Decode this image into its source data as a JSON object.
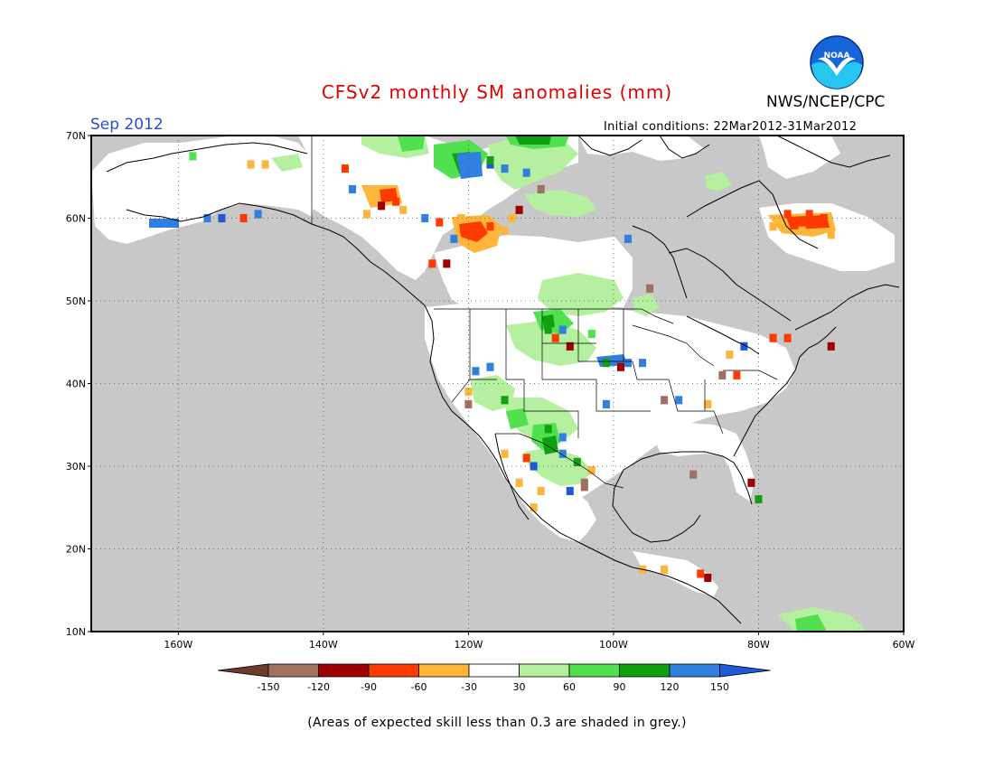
{
  "header": {
    "title": "CFSv2 monthly SM anomalies (mm)",
    "agency": "NWS/NCEP/CPC",
    "valid_month": "Sep 2012",
    "initial_conditions": "Initial conditions: 22Mar2012-31Mar2012",
    "logo_text": "NOAA"
  },
  "map": {
    "lon_range": [
      -172,
      -60
    ],
    "lat_range": [
      10,
      70
    ],
    "lat_ticks": [
      {
        "value": 70,
        "label": "70N"
      },
      {
        "value": 60,
        "label": "60N"
      },
      {
        "value": 50,
        "label": "50N"
      },
      {
        "value": 40,
        "label": "40N"
      },
      {
        "value": 30,
        "label": "30N"
      },
      {
        "value": 20,
        "label": "20N"
      },
      {
        "value": 10,
        "label": "10N"
      }
    ],
    "lon_ticks": [
      {
        "value": -160,
        "label": "160W"
      },
      {
        "value": -140,
        "label": "140W"
      },
      {
        "value": -120,
        "label": "120W"
      },
      {
        "value": -100,
        "label": "100W"
      },
      {
        "value": -80,
        "label": "80W"
      },
      {
        "value": -60,
        "label": "60W"
      }
    ],
    "background_color": "#c8c8c8",
    "gridlines": "dotted"
  },
  "legend": {
    "boundaries": [
      "-150",
      "-120",
      "-90",
      "-60",
      "-30",
      "30",
      "60",
      "90",
      "120",
      "150"
    ],
    "colors": [
      "#6e3b2a",
      "#a07060",
      "#a00000",
      "#ff3a00",
      "#ffb43a",
      "#ffffff",
      "#b4f0a0",
      "#50e050",
      "#10a010",
      "#3080e0",
      "#1e5ad6"
    ]
  },
  "footnote": "(Areas of expected skill less than 0.3 are shaded in grey.)",
  "chart_data": {
    "type": "heatmap",
    "title": "CFSv2 monthly SM anomalies (mm)",
    "units": "mm",
    "period": "Sep 2012",
    "skill_note": "Areas of expected skill less than 0.3 are shaded in grey.",
    "cells": [
      {
        "lon": -158,
        "lat": 67.5,
        "cls": 7
      },
      {
        "lon": -150,
        "lat": 66.5,
        "cls": 4
      },
      {
        "lon": -148,
        "lat": 66.5,
        "cls": 4
      },
      {
        "lon": -156,
        "lat": 60,
        "cls": 9
      },
      {
        "lon": -154,
        "lat": 60,
        "cls": 10
      },
      {
        "lon": -151,
        "lat": 60,
        "cls": 3
      },
      {
        "lon": -149,
        "lat": 60.5,
        "cls": 9
      },
      {
        "lon": -134,
        "lat": 60.5,
        "cls": 4
      },
      {
        "lon": -132,
        "lat": 61.5,
        "cls": 2
      },
      {
        "lon": -131,
        "lat": 63,
        "cls": 3
      },
      {
        "lon": -130,
        "lat": 62,
        "cls": 3
      },
      {
        "lon": -129,
        "lat": 61,
        "cls": 4
      },
      {
        "lon": -136,
        "lat": 63.5,
        "cls": 9
      },
      {
        "lon": -137,
        "lat": 66,
        "cls": 3
      },
      {
        "lon": -121,
        "lat": 60,
        "cls": 4
      },
      {
        "lon": -119,
        "lat": 59,
        "cls": 3
      },
      {
        "lon": -117,
        "lat": 59,
        "cls": 3
      },
      {
        "lon": -115,
        "lat": 58.5,
        "cls": 4
      },
      {
        "lon": -114,
        "lat": 60,
        "cls": 4
      },
      {
        "lon": -113,
        "lat": 61,
        "cls": 2
      },
      {
        "lon": -117,
        "lat": 66.5,
        "cls": 10
      },
      {
        "lon": -115,
        "lat": 66,
        "cls": 9
      },
      {
        "lon": -123,
        "lat": 54.5,
        "cls": 2
      },
      {
        "lon": -125,
        "lat": 54.5,
        "cls": 3
      },
      {
        "lon": -122,
        "lat": 57.5,
        "cls": 9
      },
      {
        "lon": -98,
        "lat": 57.5,
        "cls": 9
      },
      {
        "lon": -95,
        "lat": 51.5,
        "cls": 1
      },
      {
        "lon": -76,
        "lat": 60.5,
        "cls": 3
      },
      {
        "lon": -73,
        "lat": 60.5,
        "cls": 3
      },
      {
        "lon": -71,
        "lat": 60,
        "cls": 3
      },
      {
        "lon": -74,
        "lat": 58.5,
        "cls": 4
      },
      {
        "lon": -70,
        "lat": 58,
        "cls": 4
      },
      {
        "lon": -78,
        "lat": 59,
        "cls": 4
      },
      {
        "lon": -108,
        "lat": 45.5,
        "cls": 3
      },
      {
        "lon": -106,
        "lat": 44.5,
        "cls": 2
      },
      {
        "lon": -107,
        "lat": 46.5,
        "cls": 9
      },
      {
        "lon": -109,
        "lat": 46.5,
        "cls": 8
      },
      {
        "lon": -103,
        "lat": 46,
        "cls": 7
      },
      {
        "lon": -98,
        "lat": 42.5,
        "cls": 9
      },
      {
        "lon": -99,
        "lat": 42,
        "cls": 2
      },
      {
        "lon": -101,
        "lat": 42.5,
        "cls": 8
      },
      {
        "lon": -96,
        "lat": 42.5,
        "cls": 9
      },
      {
        "lon": -93,
        "lat": 38,
        "cls": 1
      },
      {
        "lon": -91,
        "lat": 38,
        "cls": 9
      },
      {
        "lon": -85,
        "lat": 41,
        "cls": 1
      },
      {
        "lon": -83,
        "lat": 41,
        "cls": 3
      },
      {
        "lon": -84,
        "lat": 43.5,
        "cls": 4
      },
      {
        "lon": -82,
        "lat": 44.5,
        "cls": 10
      },
      {
        "lon": -78,
        "lat": 45.5,
        "cls": 3
      },
      {
        "lon": -76,
        "lat": 45.5,
        "cls": 3
      },
      {
        "lon": -70,
        "lat": 44.5,
        "cls": 2
      },
      {
        "lon": -117,
        "lat": 42,
        "cls": 9
      },
      {
        "lon": -119,
        "lat": 41.5,
        "cls": 9
      },
      {
        "lon": -120,
        "lat": 39,
        "cls": 4
      },
      {
        "lon": -120,
        "lat": 37.5,
        "cls": 1
      },
      {
        "lon": -115,
        "lat": 31.5,
        "cls": 4
      },
      {
        "lon": -112,
        "lat": 31,
        "cls": 3
      },
      {
        "lon": -111,
        "lat": 30,
        "cls": 10
      },
      {
        "lon": -110,
        "lat": 27,
        "cls": 4
      },
      {
        "lon": -113,
        "lat": 28,
        "cls": 4
      },
      {
        "lon": -111,
        "lat": 25,
        "cls": 4
      },
      {
        "lon": -105,
        "lat": 30.5,
        "cls": 8
      },
      {
        "lon": -104,
        "lat": 28,
        "cls": 1
      },
      {
        "lon": -106,
        "lat": 27,
        "cls": 10
      },
      {
        "lon": -104,
        "lat": 27.5,
        "cls": 1
      },
      {
        "lon": -103,
        "lat": 29.5,
        "cls": 4
      },
      {
        "lon": -107,
        "lat": 33.5,
        "cls": 9
      },
      {
        "lon": -109,
        "lat": 34.5,
        "cls": 8
      },
      {
        "lon": -107,
        "lat": 31.5,
        "cls": 9
      },
      {
        "lon": -89,
        "lat": 29,
        "cls": 1
      },
      {
        "lon": -81,
        "lat": 28,
        "cls": 2
      },
      {
        "lon": -80,
        "lat": 26,
        "cls": 8
      },
      {
        "lon": -96,
        "lat": 17.5,
        "cls": 4
      },
      {
        "lon": -93,
        "lat": 17.5,
        "cls": 4
      },
      {
        "lon": -88,
        "lat": 17,
        "cls": 3
      },
      {
        "lon": -87,
        "lat": 16.5,
        "cls": 2
      },
      {
        "lon": -117,
        "lat": 67,
        "cls": 8
      },
      {
        "lon": -112,
        "lat": 65.5,
        "cls": 9
      },
      {
        "lon": -110,
        "lat": 63.5,
        "cls": 1
      },
      {
        "lon": -126,
        "lat": 60,
        "cls": 9
      },
      {
        "lon": -124,
        "lat": 59.5,
        "cls": 3
      },
      {
        "lon": -87,
        "lat": 37.5,
        "cls": 4
      },
      {
        "lon": -101,
        "lat": 37.5,
        "cls": 9
      },
      {
        "lon": -115,
        "lat": 38,
        "cls": 8
      }
    ]
  }
}
